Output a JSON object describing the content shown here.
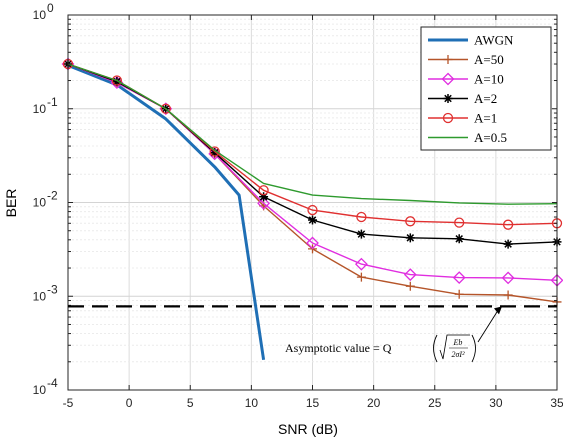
{
  "chart_data": {
    "type": "line",
    "xlabel": "SNR (dB)",
    "ylabel": "BER",
    "xlim": [
      -5,
      35
    ],
    "ylim": [
      0.0001,
      1
    ],
    "yscale": "log",
    "grid": true,
    "legend_position": "top-right",
    "x_ticks": [
      "-5",
      "0",
      "5",
      "10",
      "15",
      "20",
      "25",
      "30",
      "35"
    ],
    "y_ticks": [
      {
        "value": 1,
        "base": "10",
        "exp": "0"
      },
      {
        "value": 0.1,
        "base": "10",
        "exp": "-1"
      },
      {
        "value": 0.01,
        "base": "10",
        "exp": "-2"
      },
      {
        "value": 0.001,
        "base": "10",
        "exp": "-3"
      },
      {
        "value": 0.0001,
        "base": "10",
        "exp": "-4"
      }
    ],
    "series": [
      {
        "name": "AWGN",
        "color": "#1f6fb5",
        "marker": "none",
        "width": 3,
        "x": [
          -5,
          -1,
          3,
          7,
          9,
          11
        ],
        "y": [
          0.29,
          0.18,
          0.078,
          0.024,
          0.012,
          0.00021
        ]
      },
      {
        "name": "A=50",
        "color": "#b5552a",
        "marker": "plus",
        "width": 1.4,
        "x": [
          -5,
          -1,
          3,
          7,
          11,
          15,
          19,
          23,
          27,
          31,
          35
        ],
        "y": [
          0.3,
          0.19,
          0.1,
          0.033,
          0.0092,
          0.0032,
          0.0016,
          0.00128,
          0.00105,
          0.00103,
          0.00087
        ]
      },
      {
        "name": "A=10",
        "color": "#e02ee0",
        "marker": "diamond",
        "width": 1.4,
        "x": [
          -5,
          -1,
          3,
          7,
          11,
          15,
          19,
          23,
          27,
          31,
          35
        ],
        "y": [
          0.3,
          0.19,
          0.1,
          0.033,
          0.0098,
          0.0037,
          0.0022,
          0.0017,
          0.00158,
          0.00157,
          0.00148
        ]
      },
      {
        "name": "A=2",
        "color": "#000000",
        "marker": "star",
        "width": 1.4,
        "x": [
          -5,
          -1,
          3,
          7,
          11,
          15,
          19,
          23,
          27,
          31,
          35
        ],
        "y": [
          0.3,
          0.195,
          0.1,
          0.034,
          0.0115,
          0.0065,
          0.0046,
          0.0042,
          0.0041,
          0.0036,
          0.0038
        ]
      },
      {
        "name": "A=1",
        "color": "#e03030",
        "marker": "circle",
        "width": 1.4,
        "x": [
          -5,
          -1,
          3,
          7,
          11,
          15,
          19,
          23,
          27,
          31,
          35
        ],
        "y": [
          0.3,
          0.2,
          0.1,
          0.035,
          0.0135,
          0.0083,
          0.007,
          0.0063,
          0.0061,
          0.0058,
          0.006
        ]
      },
      {
        "name": "A=0.5",
        "color": "#2e9a2e",
        "marker": "none",
        "width": 1.4,
        "x": [
          -5,
          -1,
          3,
          7,
          11,
          15,
          19,
          23,
          27,
          31,
          35
        ],
        "y": [
          0.3,
          0.2,
          0.1,
          0.036,
          0.016,
          0.012,
          0.011,
          0.0105,
          0.0099,
          0.0096,
          0.0097
        ]
      }
    ],
    "asymptote": {
      "y": 0.00078,
      "color": "#000000",
      "dash": "long-dash"
    },
    "annotation": {
      "text": "Asymptotic value = Q",
      "numerator": "E_b",
      "denominator": "2σ_I²",
      "arrow_to": {
        "x": 30.5,
        "y": 0.00078
      }
    }
  }
}
